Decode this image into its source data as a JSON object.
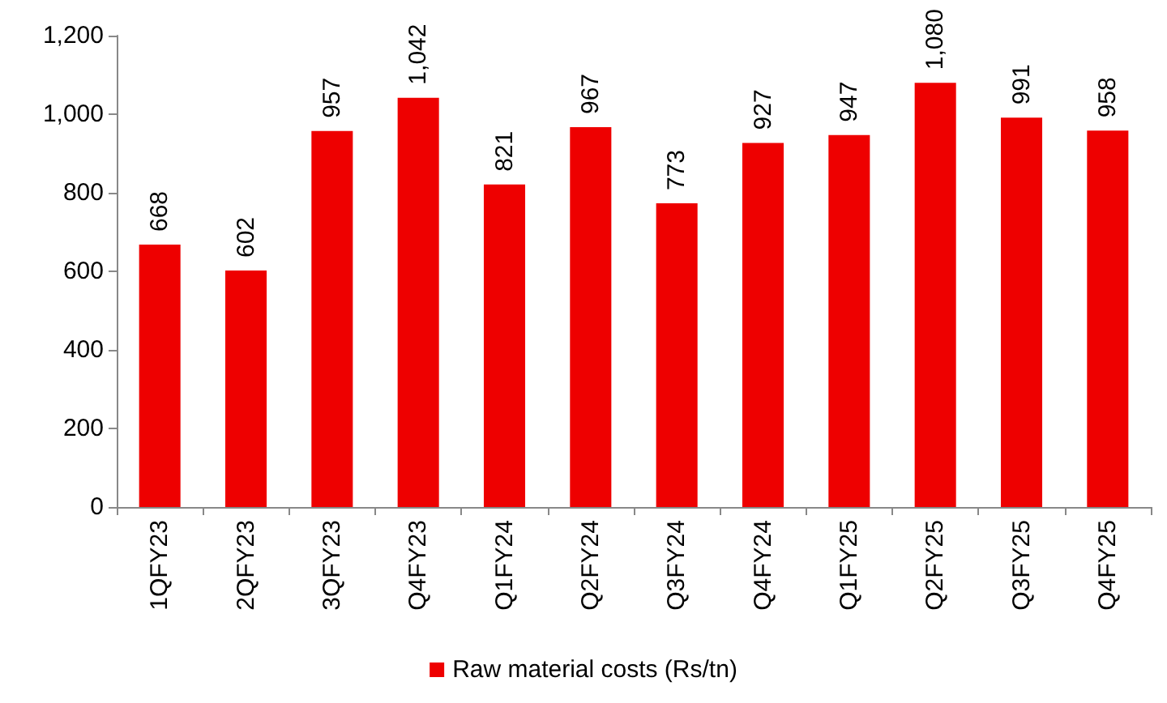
{
  "chart_data": {
    "type": "bar",
    "categories": [
      "1QFY23",
      "2QFY23",
      "3QFY23",
      "Q4FY23",
      "Q1FY24",
      "Q2FY24",
      "Q3FY24",
      "Q4FY24",
      "Q1FY25",
      "Q2FY25",
      "Q3FY25",
      "Q4FY25"
    ],
    "series": [
      {
        "name": "Raw material costs (Rs/tn)",
        "color": "#ee0000",
        "values": [
          668,
          602,
          957,
          1042,
          821,
          967,
          773,
          927,
          947,
          1080,
          991,
          958
        ],
        "value_labels": [
          "668",
          "602",
          "957",
          "1,042",
          "821",
          "967",
          "773",
          "927",
          "947",
          "1,080",
          "991",
          "958"
        ]
      }
    ],
    "ylim": [
      0,
      1200
    ],
    "yticks": [
      {
        "value": 0,
        "label": "0"
      },
      {
        "value": 200,
        "label": "200"
      },
      {
        "value": 400,
        "label": "400"
      },
      {
        "value": 600,
        "label": "600"
      },
      {
        "value": 800,
        "label": "800"
      },
      {
        "value": 1000,
        "label": "1,000"
      },
      {
        "value": 1200,
        "label": "1,200"
      }
    ],
    "grid": false,
    "legend": "bottom"
  }
}
